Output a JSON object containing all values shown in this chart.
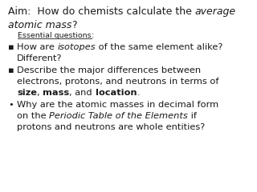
{
  "background_color": "#ffffff",
  "text_color": "#1a1a1a",
  "font_family": "DejaVu Sans",
  "fs_title": 9.0,
  "fs_essential": 6.8,
  "fs_body": 8.2
}
